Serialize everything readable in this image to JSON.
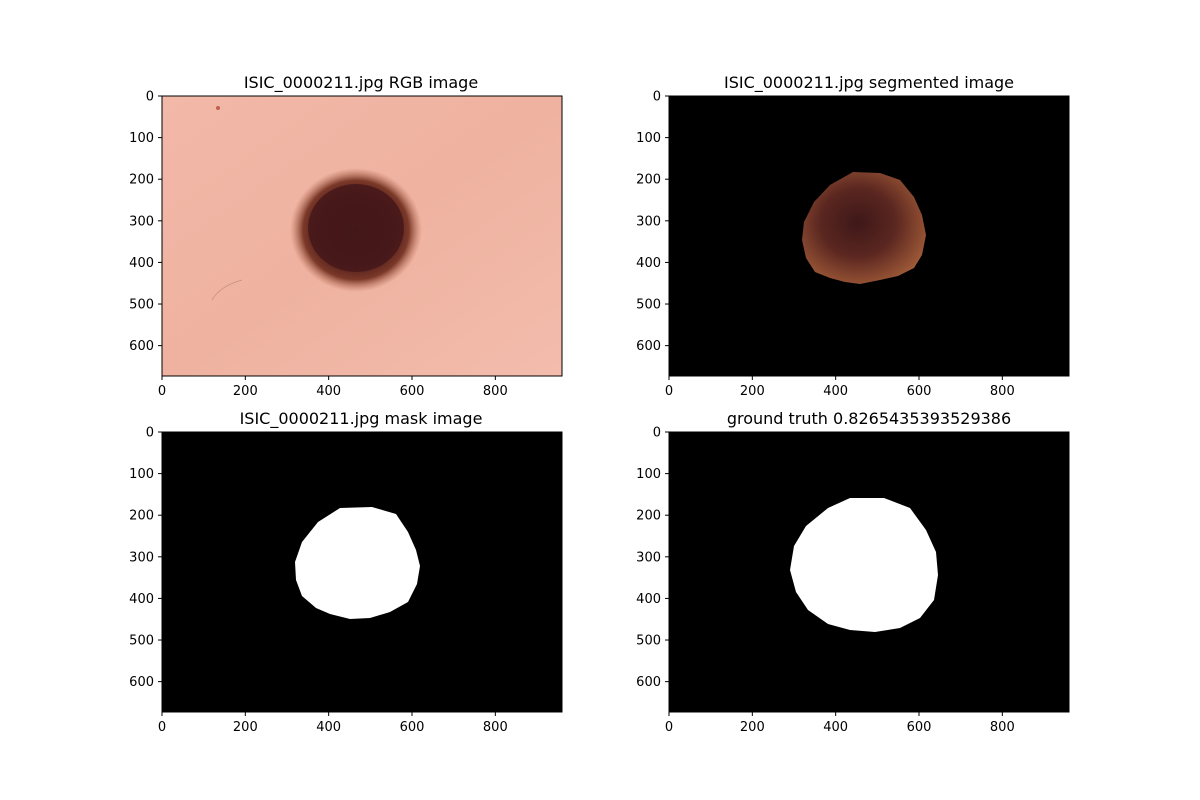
{
  "figure": {
    "panels": [
      {
        "title": "ISIC_0000211.jpg RGB image",
        "kind": "rgb"
      },
      {
        "title": "ISIC_0000211.jpg segmented image",
        "kind": "segmented"
      },
      {
        "title": "ISIC_0000211.jpg mask image",
        "kind": "mask"
      },
      {
        "title": "ground truth 0.8265435393529386",
        "kind": "ground-truth"
      }
    ],
    "x_ticks": [
      "0",
      "200",
      "400",
      "600",
      "800"
    ],
    "y_ticks": [
      "0",
      "100",
      "200",
      "300",
      "400",
      "500",
      "600"
    ],
    "x_range": [
      0,
      960
    ],
    "y_range": [
      0,
      673
    ],
    "colors": {
      "skin": "#f0b4a4",
      "lesion_dark": "#3a1416",
      "lesion_mid": "#6a2a22",
      "lesion_edge": "#9a5038",
      "segment_brown": "#8a4a30",
      "mask_fg": "#ffffff",
      "mask_bg": "#000000"
    }
  }
}
